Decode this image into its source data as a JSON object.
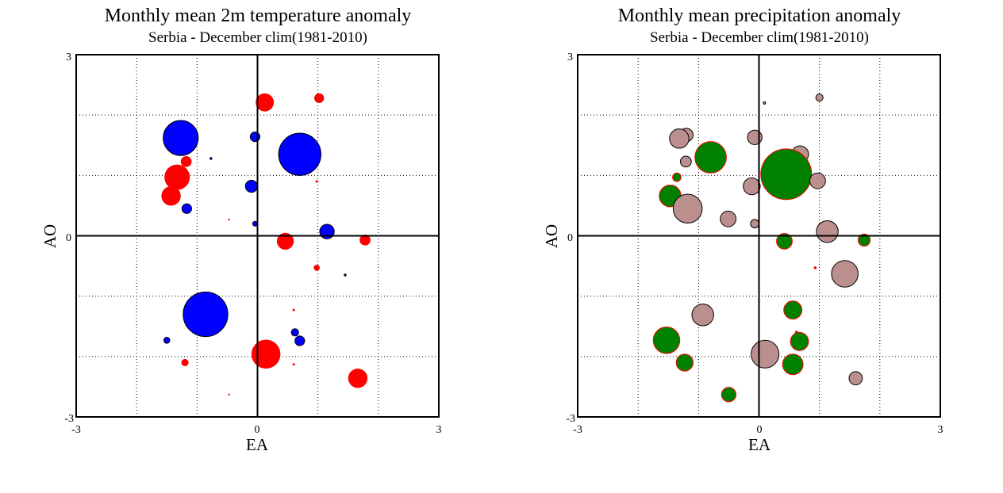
{
  "chart_data": [
    {
      "type": "scatter",
      "subtype": "bubble",
      "title": "Monthly mean 2m temperature anomaly",
      "subtitle": "Serbia - December  clim(1981-2010)",
      "xlabel": "EA",
      "ylabel": "AO",
      "xlim": [
        -3,
        3
      ],
      "ylim": [
        -3,
        3
      ],
      "x_ticks": [
        "-3",
        "0",
        "3"
      ],
      "y_ticks": [
        "3",
        "0",
        "-3"
      ],
      "grid": true,
      "grid_style": "dotted",
      "colors": {
        "positive": "#ff0000",
        "negative": "#0000ff",
        "axes": "#000000"
      },
      "points": [
        {
          "x": 0.12,
          "y": 2.21,
          "r": 0.15,
          "sign": "positive"
        },
        {
          "x": 1.02,
          "y": 2.28,
          "r": 0.08,
          "sign": "positive"
        },
        {
          "x": -1.27,
          "y": 1.62,
          "r": 0.29,
          "sign": "negative"
        },
        {
          "x": -0.04,
          "y": 1.64,
          "r": 0.08,
          "sign": "negative"
        },
        {
          "x": 0.7,
          "y": 1.35,
          "r": 0.35,
          "sign": "negative"
        },
        {
          "x": -0.77,
          "y": 1.28,
          "r": 0.01,
          "sign": "negative"
        },
        {
          "x": -1.18,
          "y": 1.23,
          "r": 0.09,
          "sign": "positive"
        },
        {
          "x": -1.33,
          "y": 0.97,
          "r": 0.21,
          "sign": "positive"
        },
        {
          "x": 0.98,
          "y": 0.9,
          "r": 0.02,
          "sign": "positive"
        },
        {
          "x": -0.1,
          "y": 0.82,
          "r": 0.1,
          "sign": "negative"
        },
        {
          "x": -1.43,
          "y": 0.66,
          "r": 0.16,
          "sign": "positive"
        },
        {
          "x": -1.17,
          "y": 0.45,
          "r": 0.08,
          "sign": "negative"
        },
        {
          "x": -0.47,
          "y": 0.27,
          "r": 0.01,
          "sign": "positive"
        },
        {
          "x": -0.04,
          "y": 0.2,
          "r": 0.04,
          "sign": "negative"
        },
        {
          "x": 1.15,
          "y": 0.07,
          "r": 0.12,
          "sign": "negative"
        },
        {
          "x": 0.46,
          "y": -0.09,
          "r": 0.14,
          "sign": "positive"
        },
        {
          "x": 1.78,
          "y": -0.07,
          "r": 0.09,
          "sign": "positive"
        },
        {
          "x": 0.98,
          "y": -0.53,
          "r": 0.05,
          "sign": "positive"
        },
        {
          "x": 1.45,
          "y": -0.65,
          "r": 0.01,
          "sign": "negative"
        },
        {
          "x": -0.86,
          "y": -1.3,
          "r": 0.37,
          "sign": "negative"
        },
        {
          "x": 0.6,
          "y": -1.23,
          "r": 0.02,
          "sign": "positive"
        },
        {
          "x": 0.62,
          "y": -1.6,
          "r": 0.06,
          "sign": "negative"
        },
        {
          "x": 0.7,
          "y": -1.74,
          "r": 0.08,
          "sign": "negative"
        },
        {
          "x": -1.5,
          "y": -1.73,
          "r": 0.05,
          "sign": "negative"
        },
        {
          "x": 0.14,
          "y": -1.96,
          "r": 0.24,
          "sign": "positive"
        },
        {
          "x": -1.2,
          "y": -2.1,
          "r": 0.06,
          "sign": "positive"
        },
        {
          "x": 0.6,
          "y": -2.13,
          "r": 0.02,
          "sign": "positive"
        },
        {
          "x": 1.66,
          "y": -2.36,
          "r": 0.16,
          "sign": "positive"
        },
        {
          "x": -0.47,
          "y": -2.63,
          "r": 0.005,
          "sign": "positive"
        }
      ]
    },
    {
      "type": "scatter",
      "subtype": "bubble",
      "title": "Monthly mean precipitation anomaly",
      "subtitle": "Serbia - December  clim(1981-2010)",
      "xlabel": "EA",
      "ylabel": "AO",
      "xlim": [
        -3,
        3
      ],
      "ylim": [
        -3,
        3
      ],
      "x_ticks": [
        "-3",
        "0",
        "3"
      ],
      "y_ticks": [
        "3",
        "0",
        "-3"
      ],
      "grid": true,
      "grid_style": "dotted",
      "colors": {
        "wet": "#008000",
        "wet_outline": "#ff0000",
        "dry": "#bc8f8f",
        "dry_outline": "#000000",
        "axes": "#000000"
      },
      "points": [
        {
          "x": 0.09,
          "y": 2.2,
          "r": 0.02,
          "sign": "dry"
        },
        {
          "x": 1.0,
          "y": 2.29,
          "r": 0.06,
          "sign": "dry"
        },
        {
          "x": -1.2,
          "y": 1.67,
          "r": 0.11,
          "sign": "dry"
        },
        {
          "x": -1.32,
          "y": 1.61,
          "r": 0.16,
          "sign": "dry"
        },
        {
          "x": -0.07,
          "y": 1.63,
          "r": 0.12,
          "sign": "dry"
        },
        {
          "x": 0.68,
          "y": 1.35,
          "r": 0.14,
          "sign": "dry"
        },
        {
          "x": -1.21,
          "y": 1.23,
          "r": 0.09,
          "sign": "dry"
        },
        {
          "x": -0.8,
          "y": 1.3,
          "r": 0.26,
          "sign": "wet"
        },
        {
          "x": 0.45,
          "y": 1.02,
          "r": 0.42,
          "sign": "wet"
        },
        {
          "x": 0.97,
          "y": 0.91,
          "r": 0.13,
          "sign": "dry"
        },
        {
          "x": -1.36,
          "y": 0.97,
          "r": 0.07,
          "sign": "wet"
        },
        {
          "x": -0.12,
          "y": 0.82,
          "r": 0.14,
          "sign": "dry"
        },
        {
          "x": -1.47,
          "y": 0.66,
          "r": 0.18,
          "sign": "wet"
        },
        {
          "x": -1.18,
          "y": 0.45,
          "r": 0.24,
          "sign": "dry"
        },
        {
          "x": -0.51,
          "y": 0.28,
          "r": 0.13,
          "sign": "dry"
        },
        {
          "x": -0.07,
          "y": 0.2,
          "r": 0.07,
          "sign": "dry"
        },
        {
          "x": 1.13,
          "y": 0.07,
          "r": 0.18,
          "sign": "dry"
        },
        {
          "x": 0.42,
          "y": -0.09,
          "r": 0.13,
          "sign": "wet"
        },
        {
          "x": 1.74,
          "y": -0.07,
          "r": 0.1,
          "sign": "wet"
        },
        {
          "x": 0.93,
          "y": -0.53,
          "r": 0.01,
          "sign": "wet"
        },
        {
          "x": 1.42,
          "y": -0.63,
          "r": 0.22,
          "sign": "dry"
        },
        {
          "x": -0.93,
          "y": -1.31,
          "r": 0.18,
          "sign": "dry"
        },
        {
          "x": 0.56,
          "y": -1.23,
          "r": 0.15,
          "sign": "wet"
        },
        {
          "x": 0.62,
          "y": -1.6,
          "r": 0.02,
          "sign": "wet"
        },
        {
          "x": 0.67,
          "y": -1.75,
          "r": 0.15,
          "sign": "wet"
        },
        {
          "x": -1.53,
          "y": -1.73,
          "r": 0.22,
          "sign": "wet"
        },
        {
          "x": 0.1,
          "y": -1.96,
          "r": 0.23,
          "sign": "dry"
        },
        {
          "x": -1.23,
          "y": -2.1,
          "r": 0.14,
          "sign": "wet"
        },
        {
          "x": 0.56,
          "y": -2.13,
          "r": 0.17,
          "sign": "wet"
        },
        {
          "x": 1.6,
          "y": -2.36,
          "r": 0.11,
          "sign": "dry"
        },
        {
          "x": -0.5,
          "y": -2.63,
          "r": 0.12,
          "sign": "wet"
        }
      ]
    }
  ]
}
